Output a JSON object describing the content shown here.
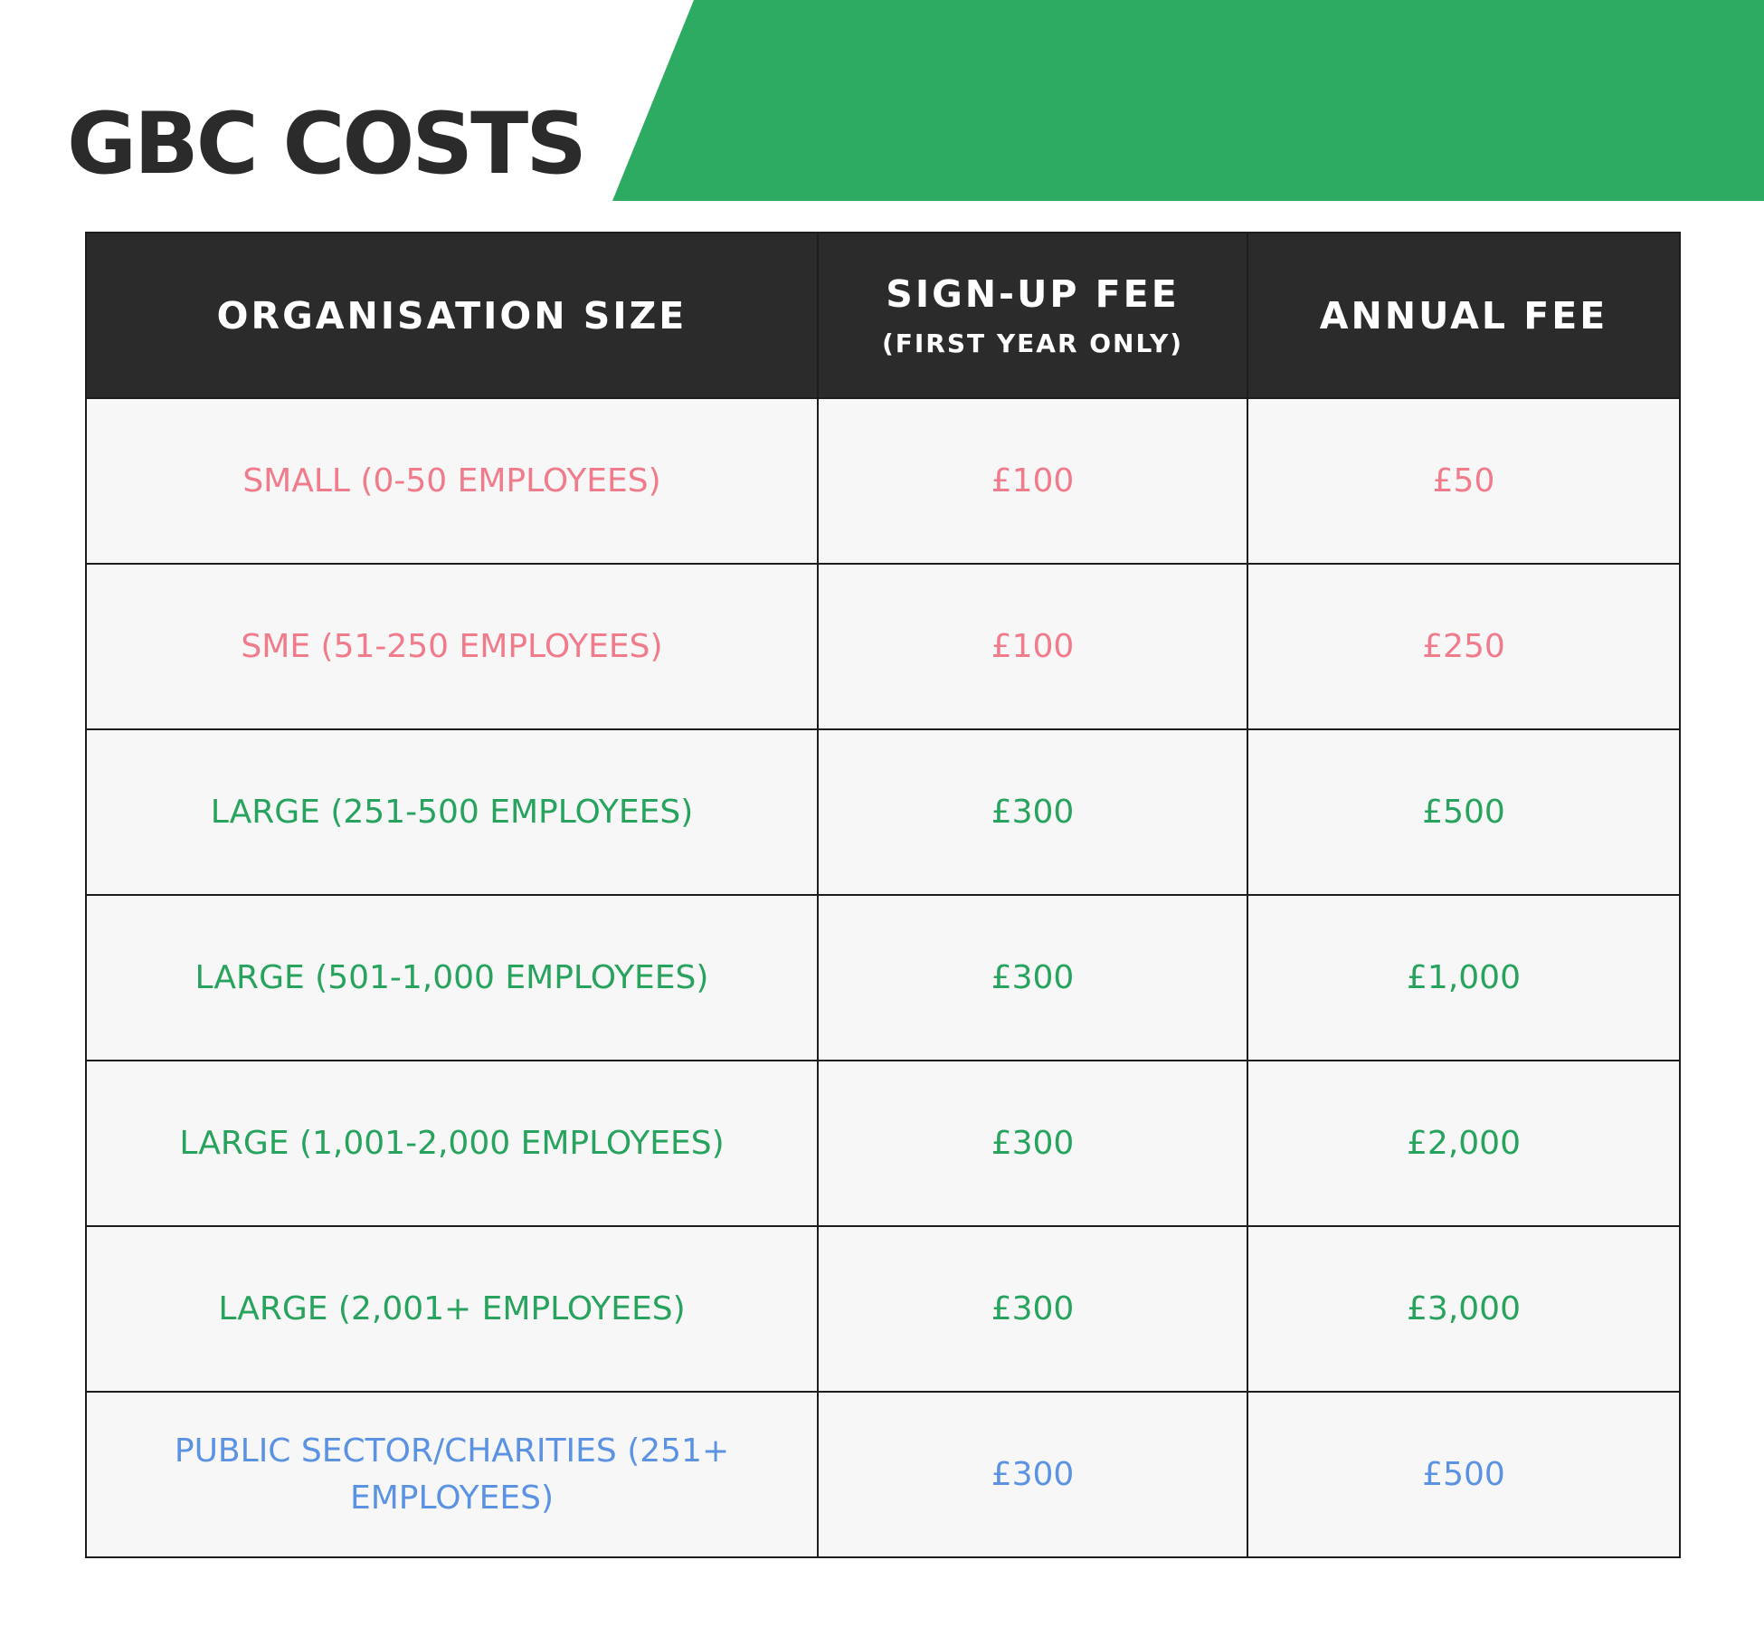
{
  "title": "GBC COSTS",
  "colors": {
    "banner": "#2dab62",
    "header_bg": "#2b2b2b",
    "pink": "#ef7b8b",
    "green": "#27a35e",
    "blue": "#5b93e2"
  },
  "table": {
    "headers": {
      "size": "ORGANISATION SIZE",
      "signup": "SIGN-UP FEE",
      "signup_note": "(FIRST YEAR ONLY)",
      "annual": "ANNUAL FEE"
    },
    "rows": [
      {
        "size": "SMALL (0-50 EMPLOYEES)",
        "signup": "£100",
        "annual": "£50",
        "color": "pink"
      },
      {
        "size": "SME (51-250 EMPLOYEES)",
        "signup": "£100",
        "annual": "£250",
        "color": "pink"
      },
      {
        "size": "LARGE (251-500 EMPLOYEES)",
        "signup": "£300",
        "annual": "£500",
        "color": "green"
      },
      {
        "size": "LARGE (501-1,000 EMPLOYEES)",
        "signup": "£300",
        "annual": "£1,000",
        "color": "green"
      },
      {
        "size": "LARGE (1,001-2,000 EMPLOYEES)",
        "signup": "£300",
        "annual": "£2,000",
        "color": "green"
      },
      {
        "size": "LARGE (2,001+ EMPLOYEES)",
        "signup": "£300",
        "annual": "£3,000",
        "color": "green"
      },
      {
        "size": "PUBLIC SECTOR/CHARITIES (251+ EMPLOYEES)",
        "signup": "£300",
        "annual": "£500",
        "color": "blue"
      }
    ]
  }
}
